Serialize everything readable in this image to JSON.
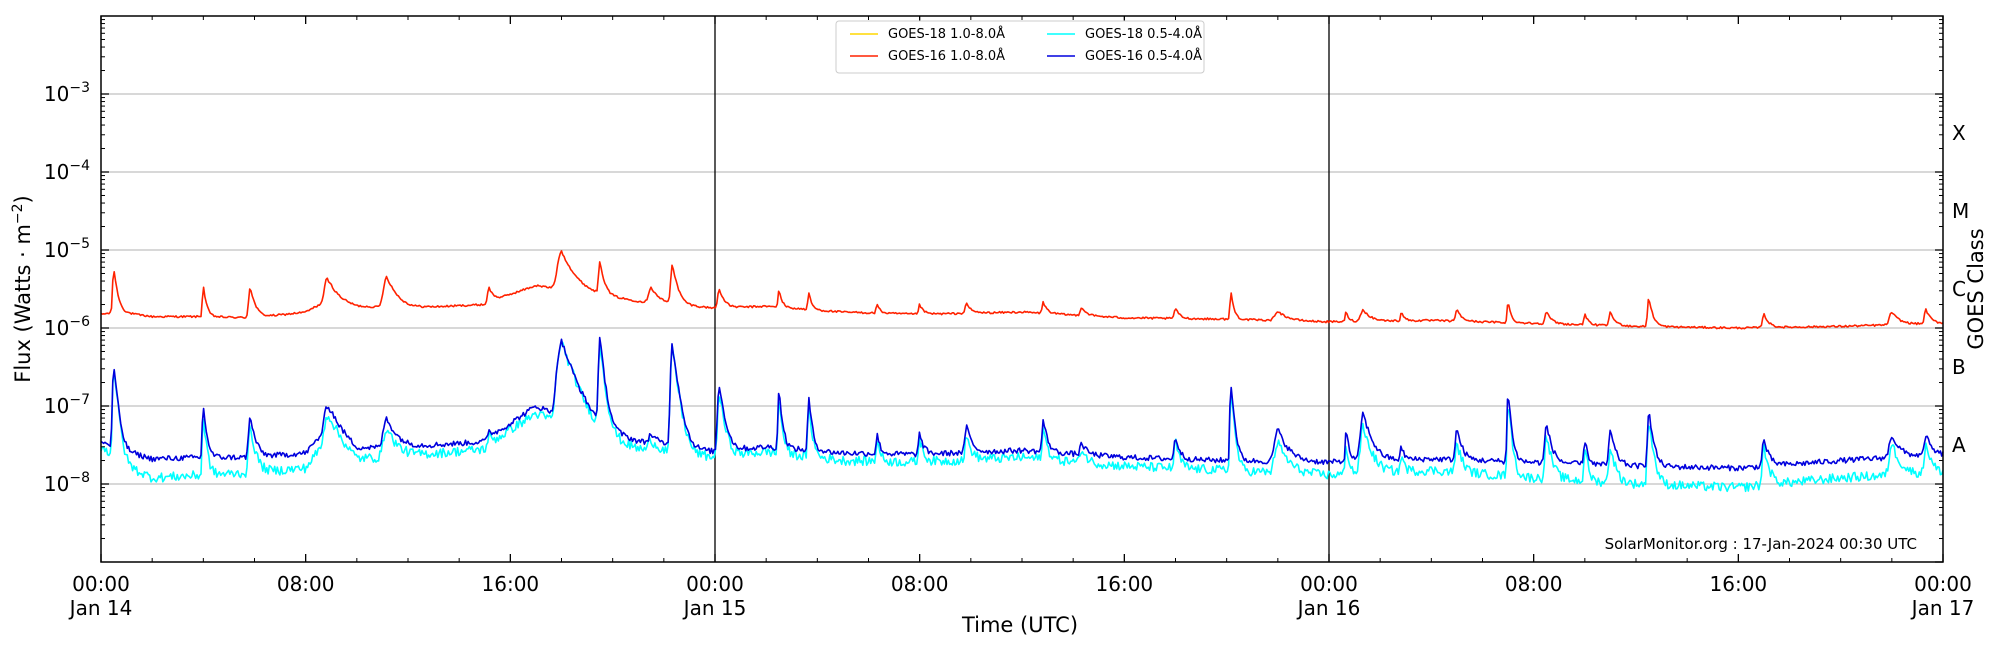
{
  "chart_data": {
    "type": "line",
    "ylabel": "Flux (Watts · m",
    "ylabel_superscript": "−2",
    "ylabel_suffix": ")",
    "xlabel": "Time (UTC)",
    "right_ylabel": "GOES Class",
    "y_scale": "log",
    "ylim": [
      1e-09,
      0.01
    ],
    "y_ticks": [
      {
        "value": 1e-08,
        "mantissa": "10",
        "exp": "−8"
      },
      {
        "value": 1e-07,
        "mantissa": "10",
        "exp": "−7"
      },
      {
        "value": 1e-06,
        "mantissa": "10",
        "exp": "−6"
      },
      {
        "value": 1e-05,
        "mantissa": "10",
        "exp": "−5"
      },
      {
        "value": 0.0001,
        "mantissa": "10",
        "exp": "−4"
      },
      {
        "value": 0.001,
        "mantissa": "10",
        "exp": "−3"
      }
    ],
    "goes_classes": [
      {
        "label": "A",
        "value": 3.16e-08
      },
      {
        "label": "B",
        "value": 3.16e-07
      },
      {
        "label": "C",
        "value": 3.16e-06
      },
      {
        "label": "M",
        "value": 3.16e-05
      },
      {
        "label": "X",
        "value": 0.000316
      }
    ],
    "xlim": [
      "2024-01-14 00:00",
      "2024-01-17 00:00"
    ],
    "x_ticks": [
      {
        "time": "2024-01-14 00:00",
        "line1": "00:00",
        "line2": "Jan 14"
      },
      {
        "time": "2024-01-14 08:00",
        "line1": "08:00",
        "line2": ""
      },
      {
        "time": "2024-01-14 16:00",
        "line1": "16:00",
        "line2": ""
      },
      {
        "time": "2024-01-15 00:00",
        "line1": "00:00",
        "line2": "Jan 15"
      },
      {
        "time": "2024-01-15 08:00",
        "line1": "08:00",
        "line2": ""
      },
      {
        "time": "2024-01-15 16:00",
        "line1": "16:00",
        "line2": ""
      },
      {
        "time": "2024-01-16 00:00",
        "line1": "00:00",
        "line2": "Jan 16"
      },
      {
        "time": "2024-01-16 08:00",
        "line1": "08:00",
        "line2": ""
      },
      {
        "time": "2024-01-16 16:00",
        "line1": "16:00",
        "line2": ""
      },
      {
        "time": "2024-01-17 00:00",
        "line1": "00:00",
        "line2": "Jan 17"
      }
    ],
    "day_boundaries": [
      "2024-01-15 00:00",
      "2024-01-16 00:00"
    ],
    "grid": "horizontal at decades",
    "legend_placement": "top-center",
    "credit": "SolarMonitor.org : 17-Jan-2024 00:30 UTC",
    "series": [
      {
        "name": "GOES-18 1.0-8.0Å",
        "color": "#ffd700",
        "points": [],
        "peaks": []
      },
      {
        "name": "GOES-16 1.0-8.0Å",
        "color": "#ff2200",
        "points": [
          [
            "2024-01-14 00:00",
            1.5e-06
          ],
          [
            "2024-01-14 00:40",
            1.6e-06
          ],
          [
            "2024-01-14 02:00",
            1.4e-06
          ],
          [
            "2024-01-14 04:00",
            1.4e-06
          ],
          [
            "2024-01-14 06:00",
            1.35e-06
          ],
          [
            "2024-01-14 08:00",
            1.6e-06
          ],
          [
            "2024-01-14 09:00",
            2.4e-06
          ],
          [
            "2024-01-14 10:00",
            1.9e-06
          ],
          [
            "2024-01-14 12:00",
            1.8e-06
          ],
          [
            "2024-01-14 15:00",
            2e-06
          ],
          [
            "2024-01-14 16:00",
            2.7e-06
          ],
          [
            "2024-01-14 17:00",
            3.5e-06
          ],
          [
            "2024-01-14 19:00",
            2.8e-06
          ],
          [
            "2024-01-14 21:00",
            2.2e-06
          ],
          [
            "2024-01-14 24:00",
            1.8e-06
          ],
          [
            "2024-01-15 02:00",
            1.9e-06
          ],
          [
            "2024-01-15 05:00",
            1.6e-06
          ],
          [
            "2024-01-15 08:00",
            1.5e-06
          ],
          [
            "2024-01-15 12:00",
            1.6e-06
          ],
          [
            "2024-01-15 16:00",
            1.35e-06
          ],
          [
            "2024-01-15 20:00",
            1.3e-06
          ],
          [
            "2024-01-16 00:00",
            1.2e-06
          ],
          [
            "2024-01-16 04:00",
            1.25e-06
          ],
          [
            "2024-01-16 08:00",
            1.15e-06
          ],
          [
            "2024-01-16 12:00",
            1.05e-06
          ],
          [
            "2024-01-16 16:00",
            1e-06
          ],
          [
            "2024-01-16 20:00",
            1.05e-06
          ],
          [
            "2024-01-17 00:00",
            1.15e-06
          ]
        ],
        "peaks": [
          [
            "2024-01-14 00:30",
            4.2e-06,
            0.35
          ],
          [
            "2024-01-14 04:00",
            2.1e-06,
            0.3
          ],
          [
            "2024-01-14 05:50",
            2e-06,
            0.5
          ],
          [
            "2024-01-14 08:50",
            2.1e-06,
            0.8
          ],
          [
            "2024-01-14 11:10",
            2.7e-06,
            1.0
          ],
          [
            "2024-01-14 15:10",
            1.2e-06,
            0.5
          ],
          [
            "2024-01-14 18:00",
            6.5e-06,
            1.2
          ],
          [
            "2024-01-14 19:30",
            4.5e-06,
            0.4
          ],
          [
            "2024-01-14 21:30",
            1.2e-06,
            0.8
          ],
          [
            "2024-01-14 22:20",
            4.5e-06,
            0.5
          ],
          [
            "2024-01-15 00:10",
            1.4e-06,
            0.5
          ],
          [
            "2024-01-15 02:30",
            1.3e-06,
            0.3
          ],
          [
            "2024-01-15 03:40",
            1.1e-06,
            0.3
          ],
          [
            "2024-01-15 06:20",
            5e-07,
            0.3
          ],
          [
            "2024-01-15 08:00",
            5e-07,
            0.4
          ],
          [
            "2024-01-15 09:50",
            5e-07,
            0.5
          ],
          [
            "2024-01-15 12:50",
            6e-07,
            0.4
          ],
          [
            "2024-01-15 14:20",
            4e-07,
            0.5
          ],
          [
            "2024-01-15 18:00",
            5e-07,
            0.4
          ],
          [
            "2024-01-15 20:10",
            1.6e-06,
            0.3
          ],
          [
            "2024-01-15 22:00",
            4e-07,
            1.0
          ],
          [
            "2024-01-16 00:40",
            4e-07,
            0.3
          ],
          [
            "2024-01-16 01:20",
            5e-07,
            0.8
          ],
          [
            "2024-01-16 02:50",
            4e-07,
            0.3
          ],
          [
            "2024-01-16 05:00",
            5e-07,
            0.5
          ],
          [
            "2024-01-16 07:00",
            1e-06,
            0.3
          ],
          [
            "2024-01-16 08:30",
            5e-07,
            0.5
          ],
          [
            "2024-01-16 10:00",
            5e-07,
            0.3
          ],
          [
            "2024-01-16 11:00",
            5e-07,
            0.5
          ],
          [
            "2024-01-16 12:30",
            1.4e-06,
            0.4
          ],
          [
            "2024-01-16 17:00",
            5e-07,
            0.5
          ],
          [
            "2024-01-16 22:00",
            5e-07,
            0.8
          ],
          [
            "2024-01-16 23:20",
            6e-07,
            0.5
          ]
        ]
      },
      {
        "name": "GOES-18 0.5-4.0Å",
        "color": "#00ffff",
        "points": [
          [
            "2024-01-14 00:00",
            3e-08
          ],
          [
            "2024-01-14 01:00",
            1.7e-08
          ],
          [
            "2024-01-14 02:00",
            1.2e-08
          ],
          [
            "2024-01-14 04:00",
            1.3e-08
          ],
          [
            "2024-01-14 06:00",
            1.4e-08
          ],
          [
            "2024-01-14 08:00",
            1.6e-08
          ],
          [
            "2024-01-14 09:00",
            4.5e-08
          ],
          [
            "2024-01-14 10:00",
            2.1e-08
          ],
          [
            "2024-01-14 12:00",
            2.3e-08
          ],
          [
            "2024-01-14 15:00",
            2.8e-08
          ],
          [
            "2024-01-14 16:00",
            5e-08
          ],
          [
            "2024-01-14 17:00",
            8e-08
          ],
          [
            "2024-01-14 19:00",
            4.5e-08
          ],
          [
            "2024-01-14 21:00",
            2.8e-08
          ],
          [
            "2024-01-14 24:00",
            2.2e-08
          ],
          [
            "2024-01-15 02:00",
            2.6e-08
          ],
          [
            "2024-01-15 05:00",
            2e-08
          ],
          [
            "2024-01-15 08:00",
            1.9e-08
          ],
          [
            "2024-01-15 12:00",
            2.2e-08
          ],
          [
            "2024-01-15 16:00",
            1.7e-08
          ],
          [
            "2024-01-15 20:00",
            1.5e-08
          ],
          [
            "2024-01-16 00:00",
            1.3e-08
          ],
          [
            "2024-01-16 04:00",
            1.5e-08
          ],
          [
            "2024-01-16 08:00",
            1.2e-08
          ],
          [
            "2024-01-16 12:00",
            1e-08
          ],
          [
            "2024-01-16 16:00",
            9e-09
          ],
          [
            "2024-01-16 20:00",
            1.2e-08
          ],
          [
            "2024-01-17 00:00",
            1.4e-08
          ]
        ],
        "peaks": [
          [
            "2024-01-14 00:30",
            3e-07,
            0.35
          ],
          [
            "2024-01-14 04:00",
            6e-08,
            0.3
          ],
          [
            "2024-01-14 05:50",
            4e-08,
            0.5
          ],
          [
            "2024-01-14 08:50",
            4e-08,
            0.8
          ],
          [
            "2024-01-14 11:10",
            3e-08,
            1.0
          ],
          [
            "2024-01-14 15:10",
            1e-08,
            0.5
          ],
          [
            "2024-01-14 18:00",
            6e-07,
            1.2
          ],
          [
            "2024-01-14 19:30",
            6e-07,
            0.4
          ],
          [
            "2024-01-14 21:30",
            1e-08,
            0.8
          ],
          [
            "2024-01-14 22:20",
            5.2e-07,
            0.5
          ],
          [
            "2024-01-15 00:10",
            1.2e-07,
            0.5
          ],
          [
            "2024-01-15 02:30",
            1e-07,
            0.3
          ],
          [
            "2024-01-15 03:40",
            8e-08,
            0.3
          ],
          [
            "2024-01-15 06:20",
            2e-08,
            0.3
          ],
          [
            "2024-01-15 08:00",
            2e-08,
            0.4
          ],
          [
            "2024-01-15 09:50",
            2e-08,
            0.5
          ],
          [
            "2024-01-15 12:50",
            3e-08,
            0.4
          ],
          [
            "2024-01-15 14:20",
            1e-08,
            0.5
          ],
          [
            "2024-01-15 18:00",
            2e-08,
            0.4
          ],
          [
            "2024-01-15 20:10",
            1.5e-07,
            0.3
          ],
          [
            "2024-01-15 22:00",
            2e-08,
            1.0
          ],
          [
            "2024-01-16 00:40",
            2e-08,
            0.3
          ],
          [
            "2024-01-16 01:20",
            4e-08,
            0.8
          ],
          [
            "2024-01-16 02:50",
            1e-08,
            0.3
          ],
          [
            "2024-01-16 05:00",
            2e-08,
            0.5
          ],
          [
            "2024-01-16 07:00",
            1.1e-07,
            0.3
          ],
          [
            "2024-01-16 08:30",
            3e-08,
            0.5
          ],
          [
            "2024-01-16 10:00",
            2e-08,
            0.3
          ],
          [
            "2024-01-16 11:00",
            2e-08,
            0.5
          ],
          [
            "2024-01-16 12:30",
            6e-08,
            0.4
          ],
          [
            "2024-01-16 17:00",
            2e-08,
            0.5
          ],
          [
            "2024-01-16 22:00",
            2e-08,
            0.8
          ],
          [
            "2024-01-16 23:20",
            2e-08,
            0.5
          ]
        ]
      },
      {
        "name": "GOES-16 0.5-4.0Å",
        "color": "#0000dd",
        "points": [
          [
            "2024-01-14 00:00",
            3.5e-08
          ],
          [
            "2024-01-14 01:00",
            2.6e-08
          ],
          [
            "2024-01-14 02:00",
            2.1e-08
          ],
          [
            "2024-01-14 04:00",
            2.2e-08
          ],
          [
            "2024-01-14 06:00",
            2.2e-08
          ],
          [
            "2024-01-14 08:00",
            2.5e-08
          ],
          [
            "2024-01-14 09:00",
            6e-08
          ],
          [
            "2024-01-14 10:00",
            2.9e-08
          ],
          [
            "2024-01-14 12:00",
            3e-08
          ],
          [
            "2024-01-14 15:00",
            3.5e-08
          ],
          [
            "2024-01-14 16:00",
            6e-08
          ],
          [
            "2024-01-14 17:00",
            1e-07
          ],
          [
            "2024-01-14 19:00",
            5.5e-08
          ],
          [
            "2024-01-14 21:00",
            3.5e-08
          ],
          [
            "2024-01-14 24:00",
            2.6e-08
          ],
          [
            "2024-01-15 02:00",
            3e-08
          ],
          [
            "2024-01-15 05:00",
            2.5e-08
          ],
          [
            "2024-01-15 08:00",
            2.4e-08
          ],
          [
            "2024-01-15 12:00",
            2.7e-08
          ],
          [
            "2024-01-15 16:00",
            2.2e-08
          ],
          [
            "2024-01-15 20:00",
            2e-08
          ],
          [
            "2024-01-16 00:00",
            1.9e-08
          ],
          [
            "2024-01-16 04:00",
            2.1e-08
          ],
          [
            "2024-01-16 08:00",
            1.9e-08
          ],
          [
            "2024-01-16 12:00",
            1.7e-08
          ],
          [
            "2024-01-16 16:00",
            1.6e-08
          ],
          [
            "2024-01-16 20:00",
            2e-08
          ],
          [
            "2024-01-17 00:00",
            2.4e-08
          ]
        ],
        "peaks": [
          [
            "2024-01-14 00:30",
            3e-07,
            0.35
          ],
          [
            "2024-01-14 04:00",
            8e-08,
            0.3
          ],
          [
            "2024-01-14 05:50",
            5e-08,
            0.5
          ],
          [
            "2024-01-14 08:50",
            5e-08,
            0.8
          ],
          [
            "2024-01-14 11:10",
            4e-08,
            1.0
          ],
          [
            "2024-01-14 15:10",
            1e-08,
            0.5
          ],
          [
            "2024-01-14 18:00",
            6e-07,
            1.2
          ],
          [
            "2024-01-14 19:30",
            6.5e-07,
            0.4
          ],
          [
            "2024-01-14 21:30",
            1e-08,
            0.8
          ],
          [
            "2024-01-14 22:20",
            5.8e-07,
            0.5
          ],
          [
            "2024-01-15 00:10",
            1.6e-07,
            0.5
          ],
          [
            "2024-01-15 02:30",
            1.3e-07,
            0.3
          ],
          [
            "2024-01-15 03:40",
            1e-07,
            0.3
          ],
          [
            "2024-01-15 06:20",
            2e-08,
            0.3
          ],
          [
            "2024-01-15 08:00",
            2e-08,
            0.4
          ],
          [
            "2024-01-15 09:50",
            3e-08,
            0.5
          ],
          [
            "2024-01-15 12:50",
            4e-08,
            0.4
          ],
          [
            "2024-01-15 14:20",
            1e-08,
            0.5
          ],
          [
            "2024-01-15 18:00",
            2e-08,
            0.4
          ],
          [
            "2024-01-15 20:10",
            1.8e-07,
            0.3
          ],
          [
            "2024-01-15 22:00",
            3e-08,
            1.0
          ],
          [
            "2024-01-16 00:40",
            3e-08,
            0.3
          ],
          [
            "2024-01-16 01:20",
            6e-08,
            0.8
          ],
          [
            "2024-01-16 02:50",
            1e-08,
            0.3
          ],
          [
            "2024-01-16 05:00",
            3e-08,
            0.5
          ],
          [
            "2024-01-16 07:00",
            1.3e-07,
            0.3
          ],
          [
            "2024-01-16 08:30",
            4e-08,
            0.5
          ],
          [
            "2024-01-16 10:00",
            2e-08,
            0.3
          ],
          [
            "2024-01-16 11:00",
            3e-08,
            0.5
          ],
          [
            "2024-01-16 12:30",
            7e-08,
            0.4
          ],
          [
            "2024-01-16 17:00",
            2e-08,
            0.5
          ],
          [
            "2024-01-16 22:00",
            2e-08,
            0.8
          ],
          [
            "2024-01-16 23:20",
            2e-08,
            0.5
          ]
        ]
      }
    ]
  }
}
